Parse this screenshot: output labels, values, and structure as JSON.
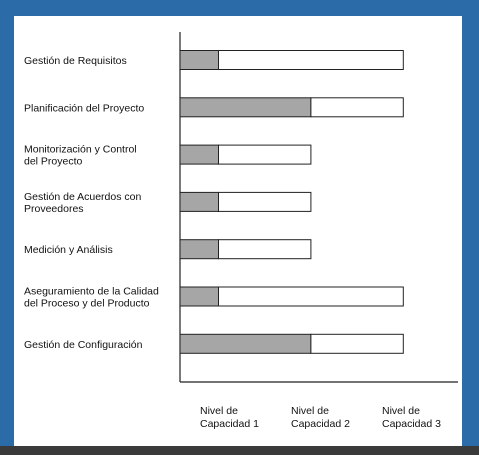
{
  "chart_data": {
    "type": "bar",
    "orientation": "horizontal",
    "stacked": true,
    "title": "",
    "xlabel": "",
    "ylabel": "",
    "grid": false,
    "xlim": [
      0,
      3
    ],
    "categories": [
      [
        "Gestión de Requisitos"
      ],
      [
        "Planificación del Proyecto"
      ],
      [
        "Monitorización y Control",
        "del Proyecto"
      ],
      [
        "Gestión de Acuerdos con",
        "Proveedores"
      ],
      [
        "Medición y Análisis"
      ],
      [
        "Aseguramiento de la Calidad",
        "del Proceso y del Producto"
      ],
      [
        "Gestión de Configuración"
      ]
    ],
    "series": [
      {
        "name": "filled",
        "color": "#a6a6a6",
        "values": [
          0.5,
          1.7,
          0.5,
          0.5,
          0.5,
          0.5,
          1.7
        ]
      },
      {
        "name": "remaining",
        "color": "#ffffff",
        "values": [
          2.4,
          1.2,
          1.2,
          1.2,
          1.2,
          2.4,
          1.2
        ]
      }
    ],
    "tick_labels": [
      {
        "value": 1,
        "lines": [
          "Nivel de",
          "Capacidad 1"
        ]
      },
      {
        "value": 2,
        "lines": [
          "Nivel de",
          "Capacidad 2"
        ]
      },
      {
        "value": 3,
        "lines": [
          "Nivel de",
          "Capacidad 3"
        ]
      }
    ]
  }
}
